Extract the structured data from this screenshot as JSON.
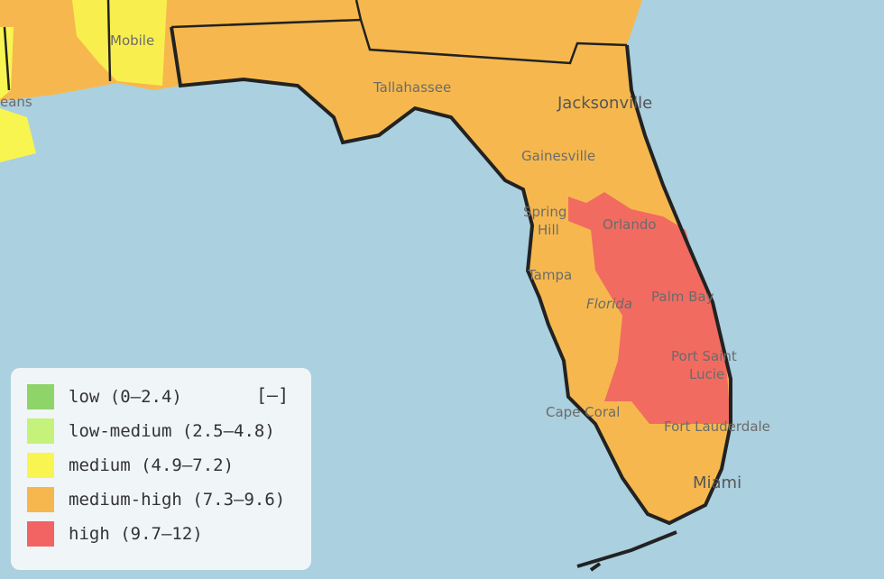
{
  "map": {
    "labels": {
      "mobile": "Mobile",
      "new_orleans": "eans",
      "tallahassee": "Tallahassee",
      "jacksonville": "Jacksonville",
      "gainesville": "Gainesville",
      "spring_hill": [
        "Spring",
        "Hill"
      ],
      "orlando": "Orlando",
      "tampa": "Tampa",
      "florida": "Florida",
      "palm_bay": "Palm Bay",
      "port_saint_lucie": [
        "Port Saint",
        "Lucie"
      ],
      "cape_coral": "Cape Coral",
      "fort_lauderdale": "Fort Lauderdale",
      "miami": "Miami"
    }
  },
  "legend": {
    "toggle": "[–]",
    "items": [
      {
        "label": "low (0–2.4)",
        "color": "#8fd468"
      },
      {
        "label": "low-medium (2.5–4.8)",
        "color": "#c4f27a"
      },
      {
        "label": "medium (4.9–7.2)",
        "color": "#f8f550"
      },
      {
        "label": "medium-high (7.3–9.6)",
        "color": "#f6b84e"
      },
      {
        "label": "high (9.7–12)",
        "color": "#f26363"
      }
    ]
  }
}
